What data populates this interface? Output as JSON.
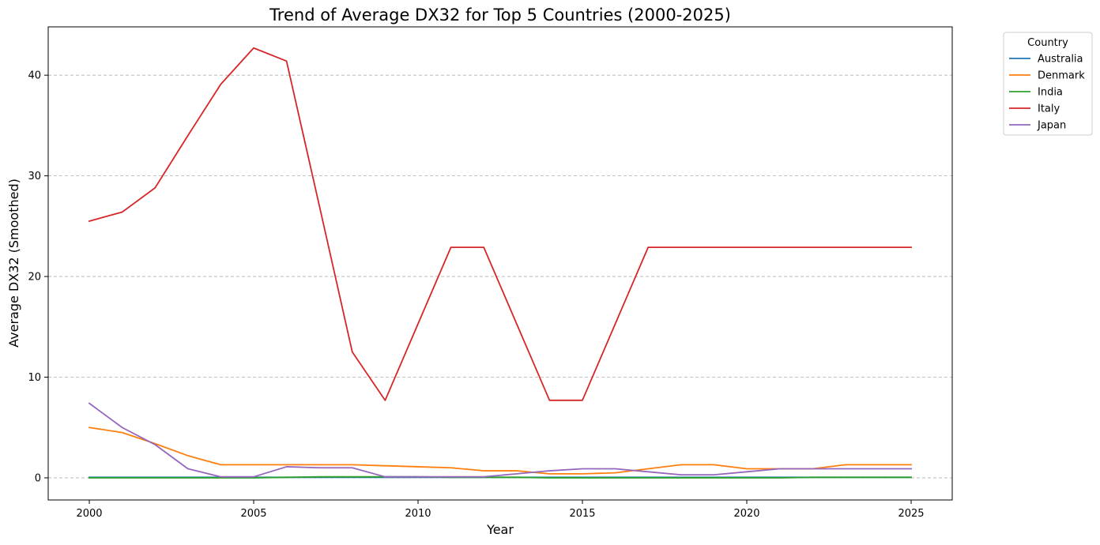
{
  "chart_data": {
    "type": "line",
    "title": "Trend of Average DX32 for Top 5 Countries (2000-2025)",
    "xlabel": "Year",
    "ylabel": "Average DX32 (Smoothed)",
    "xlim": [
      1998.75,
      2026.25
    ],
    "ylim": [
      -2.2,
      44.8
    ],
    "x_ticks": [
      2000,
      2005,
      2010,
      2015,
      2020,
      2025
    ],
    "y_ticks": [
      0,
      10,
      20,
      30,
      40
    ],
    "grid": "y-dashed",
    "legend": {
      "title": "Country",
      "placement": "outside-top-right"
    },
    "x": [
      2000,
      2001,
      2002,
      2003,
      2004,
      2005,
      2006,
      2007,
      2008,
      2009,
      2010,
      2011,
      2012,
      2013,
      2014,
      2015,
      2016,
      2017,
      2018,
      2019,
      2020,
      2021,
      2022,
      2023,
      2024,
      2025
    ],
    "series": [
      {
        "name": "Australia",
        "color": "#1f77b4",
        "values": [
          0.05,
          0.05,
          0.05,
          0.05,
          0.05,
          0.05,
          0.05,
          0.05,
          0.05,
          0.05,
          0.05,
          0.05,
          0.05,
          0.05,
          0.05,
          0.05,
          0.05,
          0.05,
          0.05,
          0.05,
          0.05,
          0.05,
          0.05,
          0.05,
          0.05,
          0.05
        ]
      },
      {
        "name": "Denmark",
        "color": "#ff7f0e",
        "values": [
          5.0,
          4.5,
          3.4,
          2.2,
          1.3,
          1.3,
          1.3,
          1.3,
          1.3,
          1.2,
          1.1,
          1.0,
          0.7,
          0.7,
          0.4,
          0.4,
          0.5,
          0.9,
          1.3,
          1.3,
          0.9,
          0.9,
          0.9,
          1.3,
          1.3,
          1.3
        ]
      },
      {
        "name": "India",
        "color": "#2ca02c",
        "values": [
          0.0,
          0.0,
          0.0,
          0.0,
          0.0,
          0.0,
          0.05,
          0.1,
          0.1,
          0.1,
          0.1,
          0.05,
          0.05,
          0.05,
          0.0,
          0.0,
          0.0,
          0.0,
          0.0,
          0.0,
          0.0,
          0.0,
          0.05,
          0.05,
          0.05,
          0.05
        ]
      },
      {
        "name": "Italy",
        "color": "#d62728",
        "values": [
          25.5,
          26.4,
          28.8,
          34.0,
          39.1,
          42.7,
          41.4,
          27.0,
          12.5,
          7.7,
          15.3,
          22.9,
          22.9,
          15.3,
          7.7,
          7.7,
          15.3,
          22.9,
          22.9,
          22.9,
          22.9,
          22.9,
          22.9,
          22.9,
          22.9,
          22.9
        ]
      },
      {
        "name": "Japan",
        "color": "#9467bd",
        "values": [
          7.4,
          5.0,
          3.3,
          0.9,
          0.1,
          0.1,
          1.1,
          1.0,
          1.0,
          0.1,
          0.1,
          0.1,
          0.1,
          0.4,
          0.7,
          0.9,
          0.9,
          0.6,
          0.3,
          0.3,
          0.6,
          0.9,
          0.9,
          0.9,
          0.9,
          0.9
        ]
      }
    ]
  }
}
